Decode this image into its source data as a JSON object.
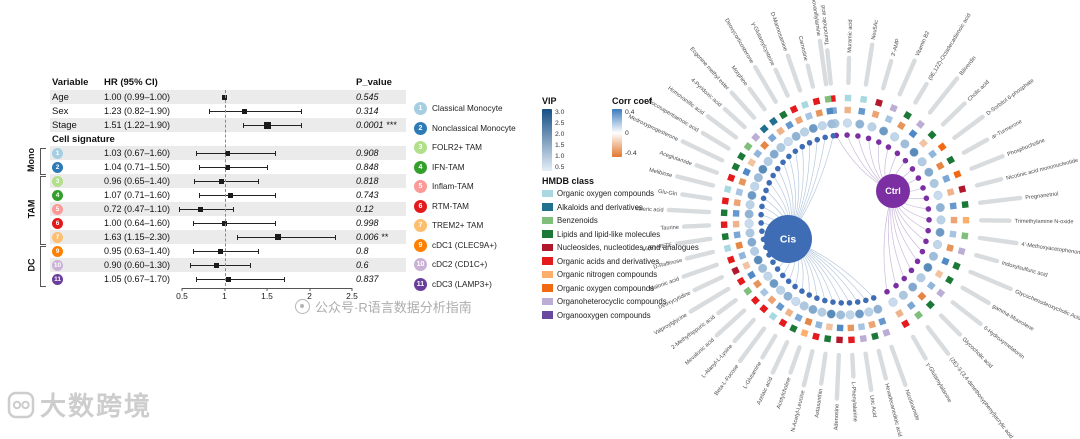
{
  "watermarks": {
    "center": "公众号·R语言数据分析指南",
    "corner": "大数跨境"
  },
  "cell_legend": {
    "items": [
      {
        "num": "1",
        "label": "Classical Monocyte",
        "color": "#A6CEE3"
      },
      {
        "num": "2",
        "label": "Nonclassical Monocyte",
        "color": "#2C7BB6"
      },
      {
        "num": "3",
        "label": "FOLR2+ TAM",
        "color": "#B2DF8A"
      },
      {
        "num": "4",
        "label": "IFN-TAM",
        "color": "#33A02C"
      },
      {
        "num": "5",
        "label": "Inflam-TAM",
        "color": "#FB9A99"
      },
      {
        "num": "6",
        "label": "RTM-TAM",
        "color": "#E31A1C"
      },
      {
        "num": "7",
        "label": "TREM2+ TAM",
        "color": "#FDBF6F"
      },
      {
        "num": "9",
        "label": "cDC1 (CLEC9A+)",
        "color": "#FF7F00"
      },
      {
        "num": "10",
        "label": "cDC2 (CD1C+)",
        "color": "#CAB2D6"
      },
      {
        "num": "11",
        "label": "cDC3 (LAMP3+)",
        "color": "#6A3D9A"
      }
    ]
  },
  "chart_data": [
    {
      "type": "table",
      "title": "",
      "headers": {
        "variable": "Variable",
        "hr": "HR (95% CI)",
        "p": "P_value"
      },
      "axis": {
        "min": 0.5,
        "max": 2.5,
        "ref": 1,
        "ticks": [
          0.5,
          1,
          1.5,
          2,
          2.5
        ],
        "tick_labels": [
          "0.5",
          "1",
          "1.5",
          "2",
          "2.5"
        ]
      },
      "groups": [
        {
          "name": "Mono",
          "start": 4,
          "end": 5
        },
        {
          "name": "TAM",
          "start": 6,
          "end": 10
        },
        {
          "name": "DC",
          "start": 11,
          "end": 13
        }
      ],
      "rows": [
        {
          "kind": "var",
          "label": "Age",
          "hr_text": "1.00 (0.99–1.00)",
          "hr": 1.0,
          "lo": 0.99,
          "hi": 1.0,
          "p": "0.545",
          "sq": 5
        },
        {
          "kind": "var",
          "label": "Sex",
          "hr_text": "1.23 (0.82–1.90)",
          "hr": 1.23,
          "lo": 0.82,
          "hi": 1.9,
          "p": "0.314",
          "sq": 5
        },
        {
          "kind": "var",
          "label": "Stage",
          "hr_text": "1.51 (1.22–1.90)",
          "hr": 1.51,
          "lo": 1.22,
          "hi": 1.9,
          "p": "0.0001 ***",
          "sq": 7
        },
        {
          "kind": "section",
          "label": "Cell signature"
        },
        {
          "kind": "cell",
          "num": "1",
          "color": "#A6CEE3",
          "hr_text": "1.03 (0.67–1.60)",
          "hr": 1.03,
          "lo": 0.67,
          "hi": 1.6,
          "p": "0.908",
          "sq": 5
        },
        {
          "kind": "cell",
          "num": "2",
          "color": "#2C7BB6",
          "hr_text": "1.04 (0.71–1.50)",
          "hr": 1.04,
          "lo": 0.71,
          "hi": 1.5,
          "p": "0.848",
          "sq": 5
        },
        {
          "kind": "cell",
          "num": "3",
          "color": "#B2DF8A",
          "hr_text": "0.96 (0.65–1.40)",
          "hr": 0.96,
          "lo": 0.65,
          "hi": 1.4,
          "p": "0.818",
          "sq": 5
        },
        {
          "kind": "cell",
          "num": "4",
          "color": "#33A02C",
          "hr_text": "1.07 (0.71–1.60)",
          "hr": 1.07,
          "lo": 0.71,
          "hi": 1.6,
          "p": "0.743",
          "sq": 5
        },
        {
          "kind": "cell",
          "num": "5",
          "color": "#FB9A99",
          "hr_text": "0.72 (0.47–1.10)",
          "hr": 0.72,
          "lo": 0.47,
          "hi": 1.1,
          "p": "0.12",
          "sq": 5
        },
        {
          "kind": "cell",
          "num": "6",
          "color": "#E31A1C",
          "hr_text": "1.00 (0.64–1.60)",
          "hr": 1.0,
          "lo": 0.64,
          "hi": 1.6,
          "p": "0.998",
          "sq": 5
        },
        {
          "kind": "cell",
          "num": "7",
          "color": "#FDBF6F",
          "hr_text": "1.63 (1.15–2.30)",
          "hr": 1.63,
          "lo": 1.15,
          "hi": 2.3,
          "p": "0.006 **",
          "sq": 6
        },
        {
          "kind": "cell",
          "num": "9",
          "color": "#FF7F00",
          "hr_text": "0.95 (0.63–1.40)",
          "hr": 0.95,
          "lo": 0.63,
          "hi": 1.4,
          "p": "0.8",
          "sq": 5
        },
        {
          "kind": "cell",
          "num": "10",
          "color": "#CAB2D6",
          "hr_text": "0.90 (0.60–1.30)",
          "hr": 0.9,
          "lo": 0.6,
          "hi": 1.3,
          "p": "0.6",
          "sq": 5
        },
        {
          "kind": "cell",
          "num": "11",
          "color": "#6A3D9A",
          "hr_text": "1.05 (0.67–1.70)",
          "hr": 1.05,
          "lo": 0.67,
          "hi": 1.7,
          "p": "0.837",
          "sq": 5
        }
      ]
    },
    {
      "type": "scatter",
      "title": "",
      "hubs": [
        {
          "id": "Cis",
          "color": "#3E6DB5"
        },
        {
          "id": "Ctrl",
          "color": "#7C2FA3"
        }
      ],
      "legends": {
        "vip": {
          "title": "VIP",
          "ticks": [
            "3.0",
            "2.5",
            "2.0",
            "1.5",
            "1.0",
            "0.5"
          ],
          "top_color": "#164F85",
          "bottom_color": "#E4EEF7"
        },
        "corr": {
          "title": "Corr coef",
          "ticks": [
            "0.4",
            "0",
            "-0.4"
          ],
          "top_color": "#3A7BBF",
          "mid_color": "#FFFFFF",
          "bottom_color": "#E2772E"
        },
        "hmdb": {
          "title": "HMDB class",
          "items": [
            {
              "label": "Organic oxygen compounds",
              "color": "#A8D8E0"
            },
            {
              "label": "Alkaloids and derivatives",
              "color": "#20708E"
            },
            {
              "label": "Benzenoids",
              "color": "#7FBF7B"
            },
            {
              "label": "Lipids and lipid-like molecules",
              "color": "#1B7837"
            },
            {
              "label": "Nucleosides, nucleotides, and analogues",
              "color": "#B2182B"
            },
            {
              "label": "Organic acids and derivatives",
              "color": "#E41A1C"
            },
            {
              "label": "Organic nitrogen compounds",
              "color": "#FDAE6B"
            },
            {
              "label": "Organic oxygen compounds",
              "color": "#F16913"
            },
            {
              "label": "Organoheterocyclic compounds",
              "color": "#BCADD4"
            },
            {
              "label": "Organooxygen compounds",
              "color": "#68499E"
            }
          ]
        }
      },
      "node_fields": [
        "name",
        "hub",
        "hmdb_class_index",
        "corr",
        "vip",
        "bar"
      ],
      "nodes": [
        [
          "Taurocholic acid",
          "Ctrl",
          5,
          0.3,
          1.2,
          0.7
        ],
        [
          "Muramic acid",
          "Ctrl",
          0,
          -0.25,
          0.8,
          0.45
        ],
        [
          "Neu5Ac",
          "Ctrl",
          0,
          0.35,
          1.6,
          0.9
        ],
        [
          "3'-AMP",
          "Ctrl",
          4,
          -0.3,
          1.0,
          0.55
        ],
        [
          "Vitamin B2",
          "Ctrl",
          8,
          0.2,
          2.1,
          0.8
        ],
        [
          "(9E,12Z)-Octadecadienoic acid",
          "Ctrl",
          3,
          -0.35,
          0.9,
          0.35
        ],
        [
          "Biliverdin",
          "Ctrl",
          8,
          0.4,
          1.4,
          1.0
        ],
        [
          "Cholic acid",
          "Ctrl",
          3,
          -0.2,
          2.4,
          0.6
        ],
        [
          "D-Sorbitol 6-phosphate",
          "Ctrl",
          7,
          0.25,
          1.1,
          0.75
        ],
        [
          "ar-Turmerone",
          "Ctrl",
          3,
          -0.4,
          1.8,
          0.5
        ],
        [
          "Phosphocholine",
          "Ctrl",
          7,
          0.3,
          1.2,
          0.7
        ],
        [
          "Nicotinic acid mononucleotide",
          "Ctrl",
          4,
          -0.25,
          0.8,
          0.45
        ],
        [
          "Pregnanetriol",
          "Ctrl",
          3,
          0.35,
          1.6,
          0.9
        ],
        [
          "Trimethylamine N-oxide",
          "Ctrl",
          6,
          -0.3,
          1.0,
          0.55
        ],
        [
          "4'-Methoxyacetophenone",
          "Ctrl",
          2,
          0.2,
          2.1,
          0.8
        ],
        [
          "Indoxylsulfuric acid",
          "Ctrl",
          8,
          -0.35,
          0.9,
          0.35
        ],
        [
          "Glycochenodeoxycholic Acid",
          "Ctrl",
          3,
          0.4,
          1.4,
          1.0
        ],
        [
          "gamma-Muurolene",
          "Ctrl",
          3,
          -0.2,
          2.4,
          0.6
        ],
        [
          "6-Hydroxymelatonin",
          "Ctrl",
          8,
          0.25,
          1.1,
          0.75
        ],
        [
          "Glycocholic acid",
          "Ctrl",
          3,
          -0.4,
          1.8,
          0.5
        ],
        [
          "(2E)-3-(3,4-dimethoxyphenyl)acrylic acid",
          "Ctrl",
          2,
          0.3,
          1.2,
          0.7
        ],
        [
          "γ-Glutamylalanine",
          "Ctrl",
          5,
          -0.25,
          0.8,
          0.45
        ],
        [
          "Nicotinamide",
          "Cis",
          8,
          0.35,
          1.6,
          0.9
        ],
        [
          "Hexadecanedioic acid",
          "Cis",
          3,
          -0.3,
          1.0,
          0.55
        ],
        [
          "Uric Acid",
          "Cis",
          8,
          0.2,
          2.1,
          0.8
        ],
        [
          "L-Phenylalanine",
          "Cis",
          5,
          -0.35,
          0.9,
          0.35
        ],
        [
          "Adenosine",
          "Cis",
          4,
          0.4,
          1.4,
          1.0
        ],
        [
          "Astaxanthin",
          "Cis",
          3,
          -0.2,
          2.4,
          0.6
        ],
        [
          "N-Acetyl-Leucine",
          "Cis",
          5,
          0.25,
          1.1,
          0.75
        ],
        [
          "Acetylcholine",
          "Cis",
          6,
          -0.4,
          1.8,
          0.5
        ],
        [
          "Azelaic acid",
          "Cis",
          3,
          0.3,
          1.2,
          0.7
        ],
        [
          "L-Glutamine",
          "Cis",
          5,
          -0.25,
          0.8,
          0.45
        ],
        [
          "Beta-L-Fucose",
          "Cis",
          0,
          0.35,
          1.6,
          0.9
        ],
        [
          "L-Alanyl-L-Lysine",
          "Cis",
          5,
          -0.3,
          1.0,
          0.55
        ],
        [
          "Mevalonic acid",
          "Cis",
          5,
          0.2,
          2.1,
          0.8
        ],
        [
          "2-Methylhippuric acid",
          "Cis",
          2,
          -0.35,
          0.9,
          0.35
        ],
        [
          "Valproylglycine",
          "Cis",
          5,
          0.4,
          1.4,
          1.0
        ],
        [
          "Deoxycytidine",
          "Cis",
          4,
          -0.2,
          2.4,
          0.6
        ],
        [
          "Malonic acid",
          "Cis",
          5,
          0.25,
          1.1,
          0.75
        ],
        [
          "D-Raffinose",
          "Cis",
          0,
          -0.4,
          1.8,
          0.5
        ],
        [
          "16(R)-HETE",
          "Cis",
          3,
          0.3,
          1.2,
          0.7
        ],
        [
          "Taurine",
          "Cis",
          5,
          -0.25,
          0.8,
          0.45
        ],
        [
          "Valeric acid",
          "Cis",
          3,
          0.35,
          1.6,
          0.9
        ],
        [
          "Glu-Gln",
          "Cis",
          5,
          -0.3,
          1.0,
          0.55
        ],
        [
          "Melibiose",
          "Cis",
          0,
          0.2,
          2.1,
          0.8
        ],
        [
          "Aceglutamide",
          "Cis",
          5,
          -0.35,
          0.9,
          0.35
        ],
        [
          "Medroxyprogesterone",
          "Cis",
          3,
          0.4,
          1.4,
          1.0
        ],
        [
          "Docosapentaenoic acid",
          "Cis",
          3,
          -0.2,
          2.4,
          0.6
        ],
        [
          "Homovanillic acid",
          "Cis",
          2,
          0.25,
          1.1,
          0.75
        ],
        [
          "4-Pyridoxic acid",
          "Cis",
          8,
          -0.4,
          1.8,
          0.5
        ],
        [
          "Ecgonine methyl ester",
          "Cis",
          1,
          0.3,
          1.2,
          0.7
        ],
        [
          "Morphine",
          "Cis",
          1,
          -0.25,
          0.8,
          0.45
        ],
        [
          "Deoxycorticosterone",
          "Cis",
          3,
          0.35,
          1.6,
          0.9
        ],
        [
          "γ-Glutamylcysteine",
          "Cis",
          5,
          -0.3,
          1.0,
          0.55
        ],
        [
          "D-Mannosamine",
          "Cis",
          0,
          0.2,
          2.1,
          0.8
        ],
        [
          "Carnosine",
          "Cis",
          5,
          -0.35,
          0.9,
          0.35
        ],
        [
          "Homovanillylamine",
          "Cis",
          2,
          0.4,
          1.4,
          1.0
        ]
      ]
    }
  ]
}
